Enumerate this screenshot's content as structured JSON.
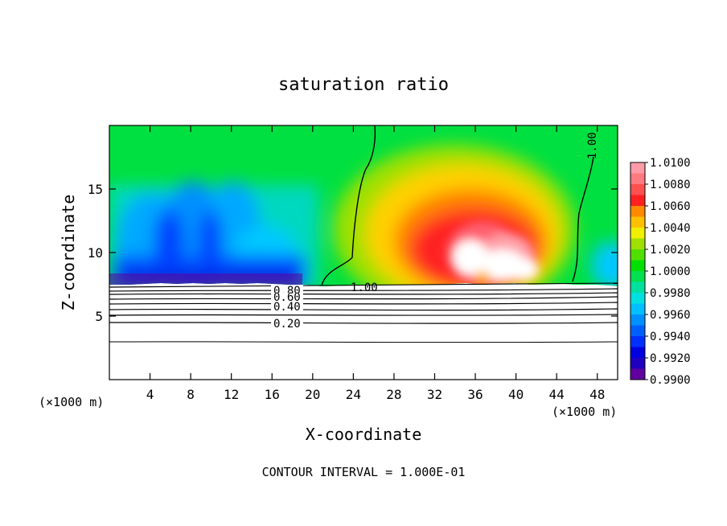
{
  "chart_data": {
    "type": "heatmap",
    "title": "saturation ratio",
    "xlabel": "X-coordinate",
    "ylabel": "Z-coordinate",
    "x_unit_left": "(×1000 m)",
    "x_unit_right": "(×1000 m)",
    "xlim": [
      0,
      50
    ],
    "ylim": [
      0,
      20
    ],
    "x_ticks": [
      4,
      8,
      12,
      16,
      20,
      24,
      28,
      32,
      36,
      40,
      44,
      48
    ],
    "x_ticklabels": [
      "4",
      "8",
      "12",
      "16",
      "20",
      "24",
      "28",
      "32",
      "36",
      "40",
      "44",
      "48"
    ],
    "y_ticks": [
      5,
      10,
      15
    ],
    "y_ticklabels": [
      "5",
      "10",
      "15"
    ],
    "colorbar": {
      "levels": [
        "1.0100",
        "1.0080",
        "1.0060",
        "1.0040",
        "1.0020",
        "1.0000",
        "0.9980",
        "0.9960",
        "0.9940",
        "0.9920",
        "0.9900"
      ],
      "colors": [
        "#ff9aa8",
        "#ff7a80",
        "#ff5050",
        "#ff2020",
        "#ff8a00",
        "#ffc000",
        "#f0f000",
        "#a0e000",
        "#50e000",
        "#00e000",
        "#00e050",
        "#00e0a0",
        "#00e0e0",
        "#00c0ff",
        "#0090ff",
        "#0060ff",
        "#0030ff",
        "#0000e0",
        "#2000c0",
        "#6000a0"
      ]
    },
    "contour_labels": [
      "0.80",
      "0.60",
      "0.40",
      "0.20",
      "1.00",
      "1.00"
    ],
    "contour_levels": [
      0.2,
      0.4,
      0.6,
      0.8,
      1.0
    ],
    "footer": "CONTOUR INTERVAL = 1.000E-01"
  }
}
